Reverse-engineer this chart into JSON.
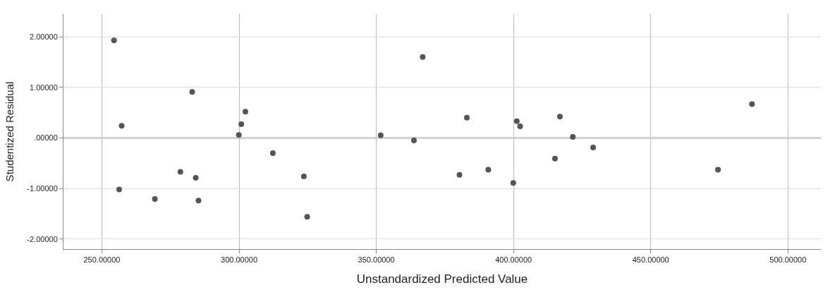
{
  "chart_data": {
    "type": "scatter",
    "xlabel": "Unstandardized Predicted Value",
    "ylabel": "Studentized Residual",
    "x": [
      254.4,
      366.9,
      282.9,
      302.3,
      257.2,
      300.8,
      299.9,
      351.6,
      363.7,
      312.3,
      278.6,
      284.2,
      323.6,
      256.3,
      269.3,
      285.2,
      324.8,
      383.0,
      380.3,
      390.8,
      399.9,
      401.2,
      402.4,
      416.9,
      415.1,
      421.6,
      429.0,
      474.5,
      486.9
    ],
    "values": [
      1.93,
      1.6,
      0.91,
      0.52,
      0.24,
      0.27,
      0.06,
      0.05,
      -0.05,
      -0.3,
      -0.67,
      -0.79,
      -0.76,
      -1.02,
      -1.21,
      -1.24,
      -1.56,
      0.4,
      -0.73,
      -0.63,
      -0.89,
      0.33,
      0.23,
      0.42,
      -0.41,
      0.02,
      -0.19,
      -0.63,
      0.67
    ],
    "color": "#555555",
    "marker": "circle",
    "xlim": [
      236,
      512
    ],
    "ylim": [
      -2.2,
      2.45
    ],
    "xticks": [
      {
        "value": 250,
        "label": "250.00000"
      },
      {
        "value": 300,
        "label": "300.00000"
      },
      {
        "value": 350,
        "label": "350.00000"
      },
      {
        "value": 400,
        "label": "400.00000"
      },
      {
        "value": 450,
        "label": "450.00000"
      },
      {
        "value": 500,
        "label": "500.00000"
      }
    ],
    "yticks": [
      {
        "value": -2,
        "label": "-2.00000"
      },
      {
        "value": -1,
        "label": "-1.00000"
      },
      {
        "value": 0,
        "label": ".00000"
      },
      {
        "value": 1,
        "label": "1.00000"
      },
      {
        "value": 2,
        "label": "2.00000"
      }
    ],
    "ref_lines": [
      {
        "axis": "y",
        "value": 0,
        "color": "#333333",
        "line_style": "solid"
      }
    ],
    "grid": true
  }
}
